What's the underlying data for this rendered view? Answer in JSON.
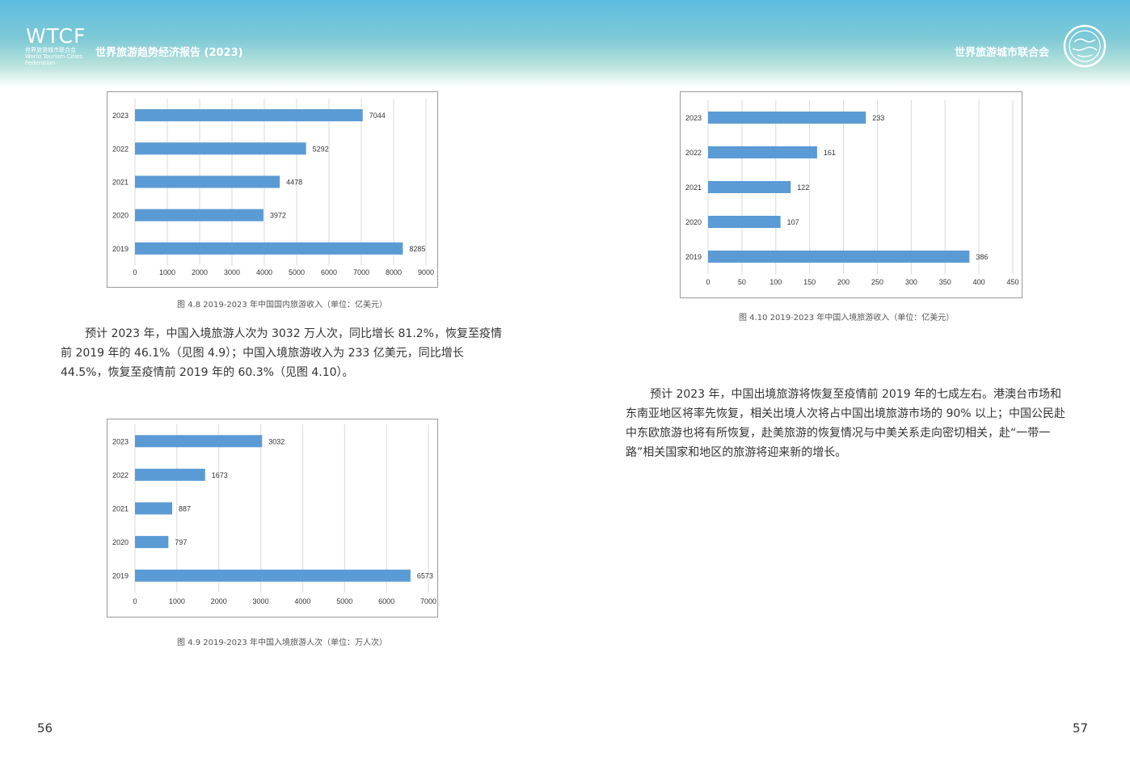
{
  "header": {
    "logo": "WTCF",
    "logo_sub": "世界旅游城市联合会 World Tourism Cities Federation",
    "report_title": "世界旅游趋势经济报告 (2023)",
    "org_name": "世界旅游城市联合会"
  },
  "captions": {
    "fig48": "图 4.8 2019-2023 年中国国内旅游收入（单位：亿美元）",
    "fig49": "图 4.9 2019-2023 年中国入境旅游人次（单位：万人次）",
    "fig410": "图 4.10 2019-2023 年中国入境旅游收入（单位：亿美元）"
  },
  "paragraphs": {
    "left": "预计 2023 年，中国入境旅游人次为 3032 万人次，同比增长 81.2%，恢复至疫情前 2019 年的 46.1%（见图 4.9）；中国入境旅游收入为 233 亿美元，同比增长 44.5%，恢复至疫情前 2019 年的 60.3%（见图 4.10）。",
    "right": "预计 2023 年，中国出境旅游将恢复至疫情前 2019 年的七成左右。港澳台市场和东南亚地区将率先恢复，相关出境人次将占中国出境旅游市场的 90% 以上；中国公民赴中东欧旅游也将有所恢复，赴美旅游的恢复情况与中美关系走向密切相关，赴“一带一路”相关国家和地区的旅游将迎来新的增长。"
  },
  "page_numbers": {
    "left": "56",
    "right": "57"
  },
  "colors": {
    "bar": "#5b9bd5"
  },
  "chart_data": [
    {
      "id": "fig48",
      "type": "bar",
      "orientation": "horizontal",
      "categories": [
        "2023",
        "2022",
        "2021",
        "2020",
        "2019"
      ],
      "values": [
        7044,
        5292,
        4478,
        3972,
        8285
      ],
      "xlim": [
        0,
        9000
      ],
      "ticks": [
        0,
        1000,
        2000,
        3000,
        4000,
        5000,
        6000,
        7000,
        8000,
        9000
      ]
    },
    {
      "id": "fig49",
      "type": "bar",
      "orientation": "horizontal",
      "categories": [
        "2023",
        "2022",
        "2021",
        "2020",
        "2019"
      ],
      "values": [
        3032,
        1673,
        887,
        797,
        6573
      ],
      "xlim": [
        0,
        7000
      ],
      "ticks": [
        0,
        1000,
        2000,
        3000,
        4000,
        5000,
        6000,
        7000
      ]
    },
    {
      "id": "fig410",
      "type": "bar",
      "orientation": "horizontal",
      "categories": [
        "2023",
        "2022",
        "2021",
        "2020",
        "2019"
      ],
      "values": [
        233,
        161,
        122,
        107,
        386
      ],
      "xlim": [
        0,
        450
      ],
      "ticks": [
        0,
        50,
        100,
        150,
        200,
        250,
        300,
        350,
        400,
        450
      ]
    }
  ]
}
